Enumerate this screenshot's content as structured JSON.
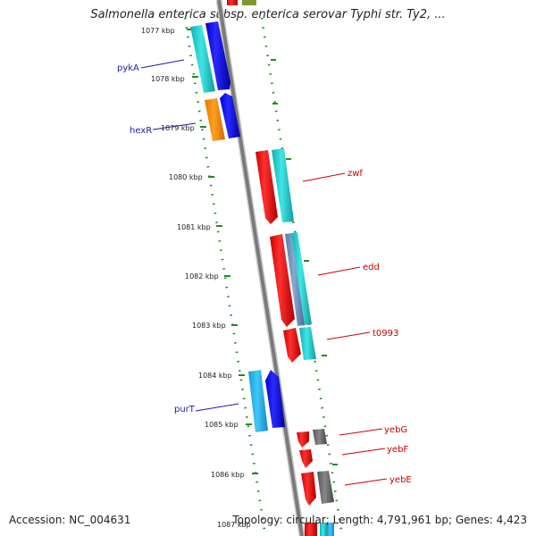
{
  "header": {
    "title": "Salmonella enterica subsp. enterica serovar Typhi str. Ty2, ..."
  },
  "footer": {
    "accession": "Accession: NC_004631",
    "topology": "Topology: circular; Length: 4,791,961 bp; Genes: 4,423"
  },
  "map": {
    "kbp_labels": [
      "1077 kbp",
      "1078 kbp",
      "1079 kbp",
      "1080 kbp",
      "1081 kbp",
      "1082 kbp",
      "1083 kbp",
      "1084 kbp",
      "1085 kbp",
      "1086 kbp",
      "1087 kbp"
    ],
    "genes": [
      {
        "name": "pykA",
        "strand": "reverse"
      },
      {
        "name": "hexR",
        "strand": "reverse"
      },
      {
        "name": "zwf",
        "strand": "forward"
      },
      {
        "name": "edd",
        "strand": "forward"
      },
      {
        "name": "t0993",
        "strand": "forward"
      },
      {
        "name": "purT",
        "strand": "reverse"
      },
      {
        "name": "yebG",
        "strand": "forward"
      },
      {
        "name": "yebF",
        "strand": "forward"
      },
      {
        "name": "yebE",
        "strand": "forward"
      }
    ],
    "colors": {
      "backbone": "#888888",
      "tick": "#228b22",
      "cds_reverse": "#0000ff",
      "cds_forward": "#ff0000",
      "feature_cyan": "#22cccc",
      "feature_orange": "#ff8c00",
      "feature_gray": "#666666",
      "label_reverse": "#1a1ab0",
      "label_forward": "#cc0000"
    }
  }
}
